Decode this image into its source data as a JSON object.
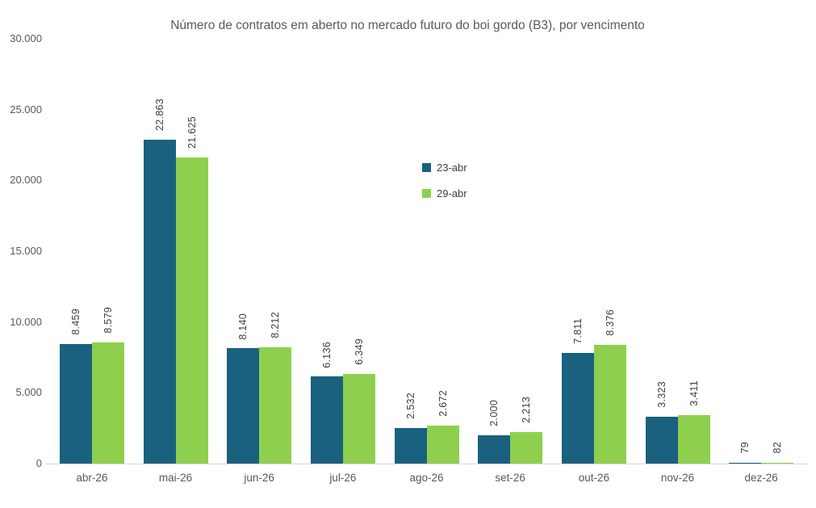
{
  "chart_data": {
    "type": "bar",
    "title": "Número de contratos em aberto no mercado futuro do boi gordo (B3), por vencimento",
    "xlabel": "",
    "ylabel": "",
    "categories": [
      "abr-26",
      "mai-26",
      "jun-26",
      "jul-26",
      "ago-26",
      "set-26",
      "out-26",
      "nov-26",
      "dez-26"
    ],
    "series": [
      {
        "name": "23-abr",
        "color": "#19617E",
        "values": [
          8459,
          22863,
          8140,
          6136,
          2532,
          2000,
          7811,
          3323,
          79
        ],
        "labels": [
          "8.459",
          "22.863",
          "8.140",
          "6.136",
          "2.532",
          "2.000",
          "7.811",
          "3.323",
          "79"
        ]
      },
      {
        "name": "29-abr",
        "color": "#8ED04E",
        "values": [
          8579,
          21625,
          8212,
          6349,
          2672,
          2213,
          8376,
          3411,
          82
        ],
        "labels": [
          "8.579",
          "21.625",
          "8.212",
          "6.349",
          "2.672",
          "2.213",
          "8.376",
          "3.411",
          "82"
        ]
      }
    ],
    "ylim": [
      0,
      30000
    ],
    "y_ticks": [
      {
        "value": 0,
        "label": "0"
      },
      {
        "value": 5000,
        "label": "5.000"
      },
      {
        "value": 10000,
        "label": "10.000"
      },
      {
        "value": 15000,
        "label": "15.000"
      },
      {
        "value": 20000,
        "label": "20.000"
      },
      {
        "value": 25000,
        "label": "25.000"
      },
      {
        "value": 30000,
        "label": "30.000"
      }
    ],
    "grid": false,
    "legend_position": "inside-upper-center",
    "value_labels_rotation": 90
  },
  "colors": {
    "text": "#595959",
    "data_label": "#404040",
    "axis_line": "#d6d6d6",
    "background": "#ffffff"
  }
}
